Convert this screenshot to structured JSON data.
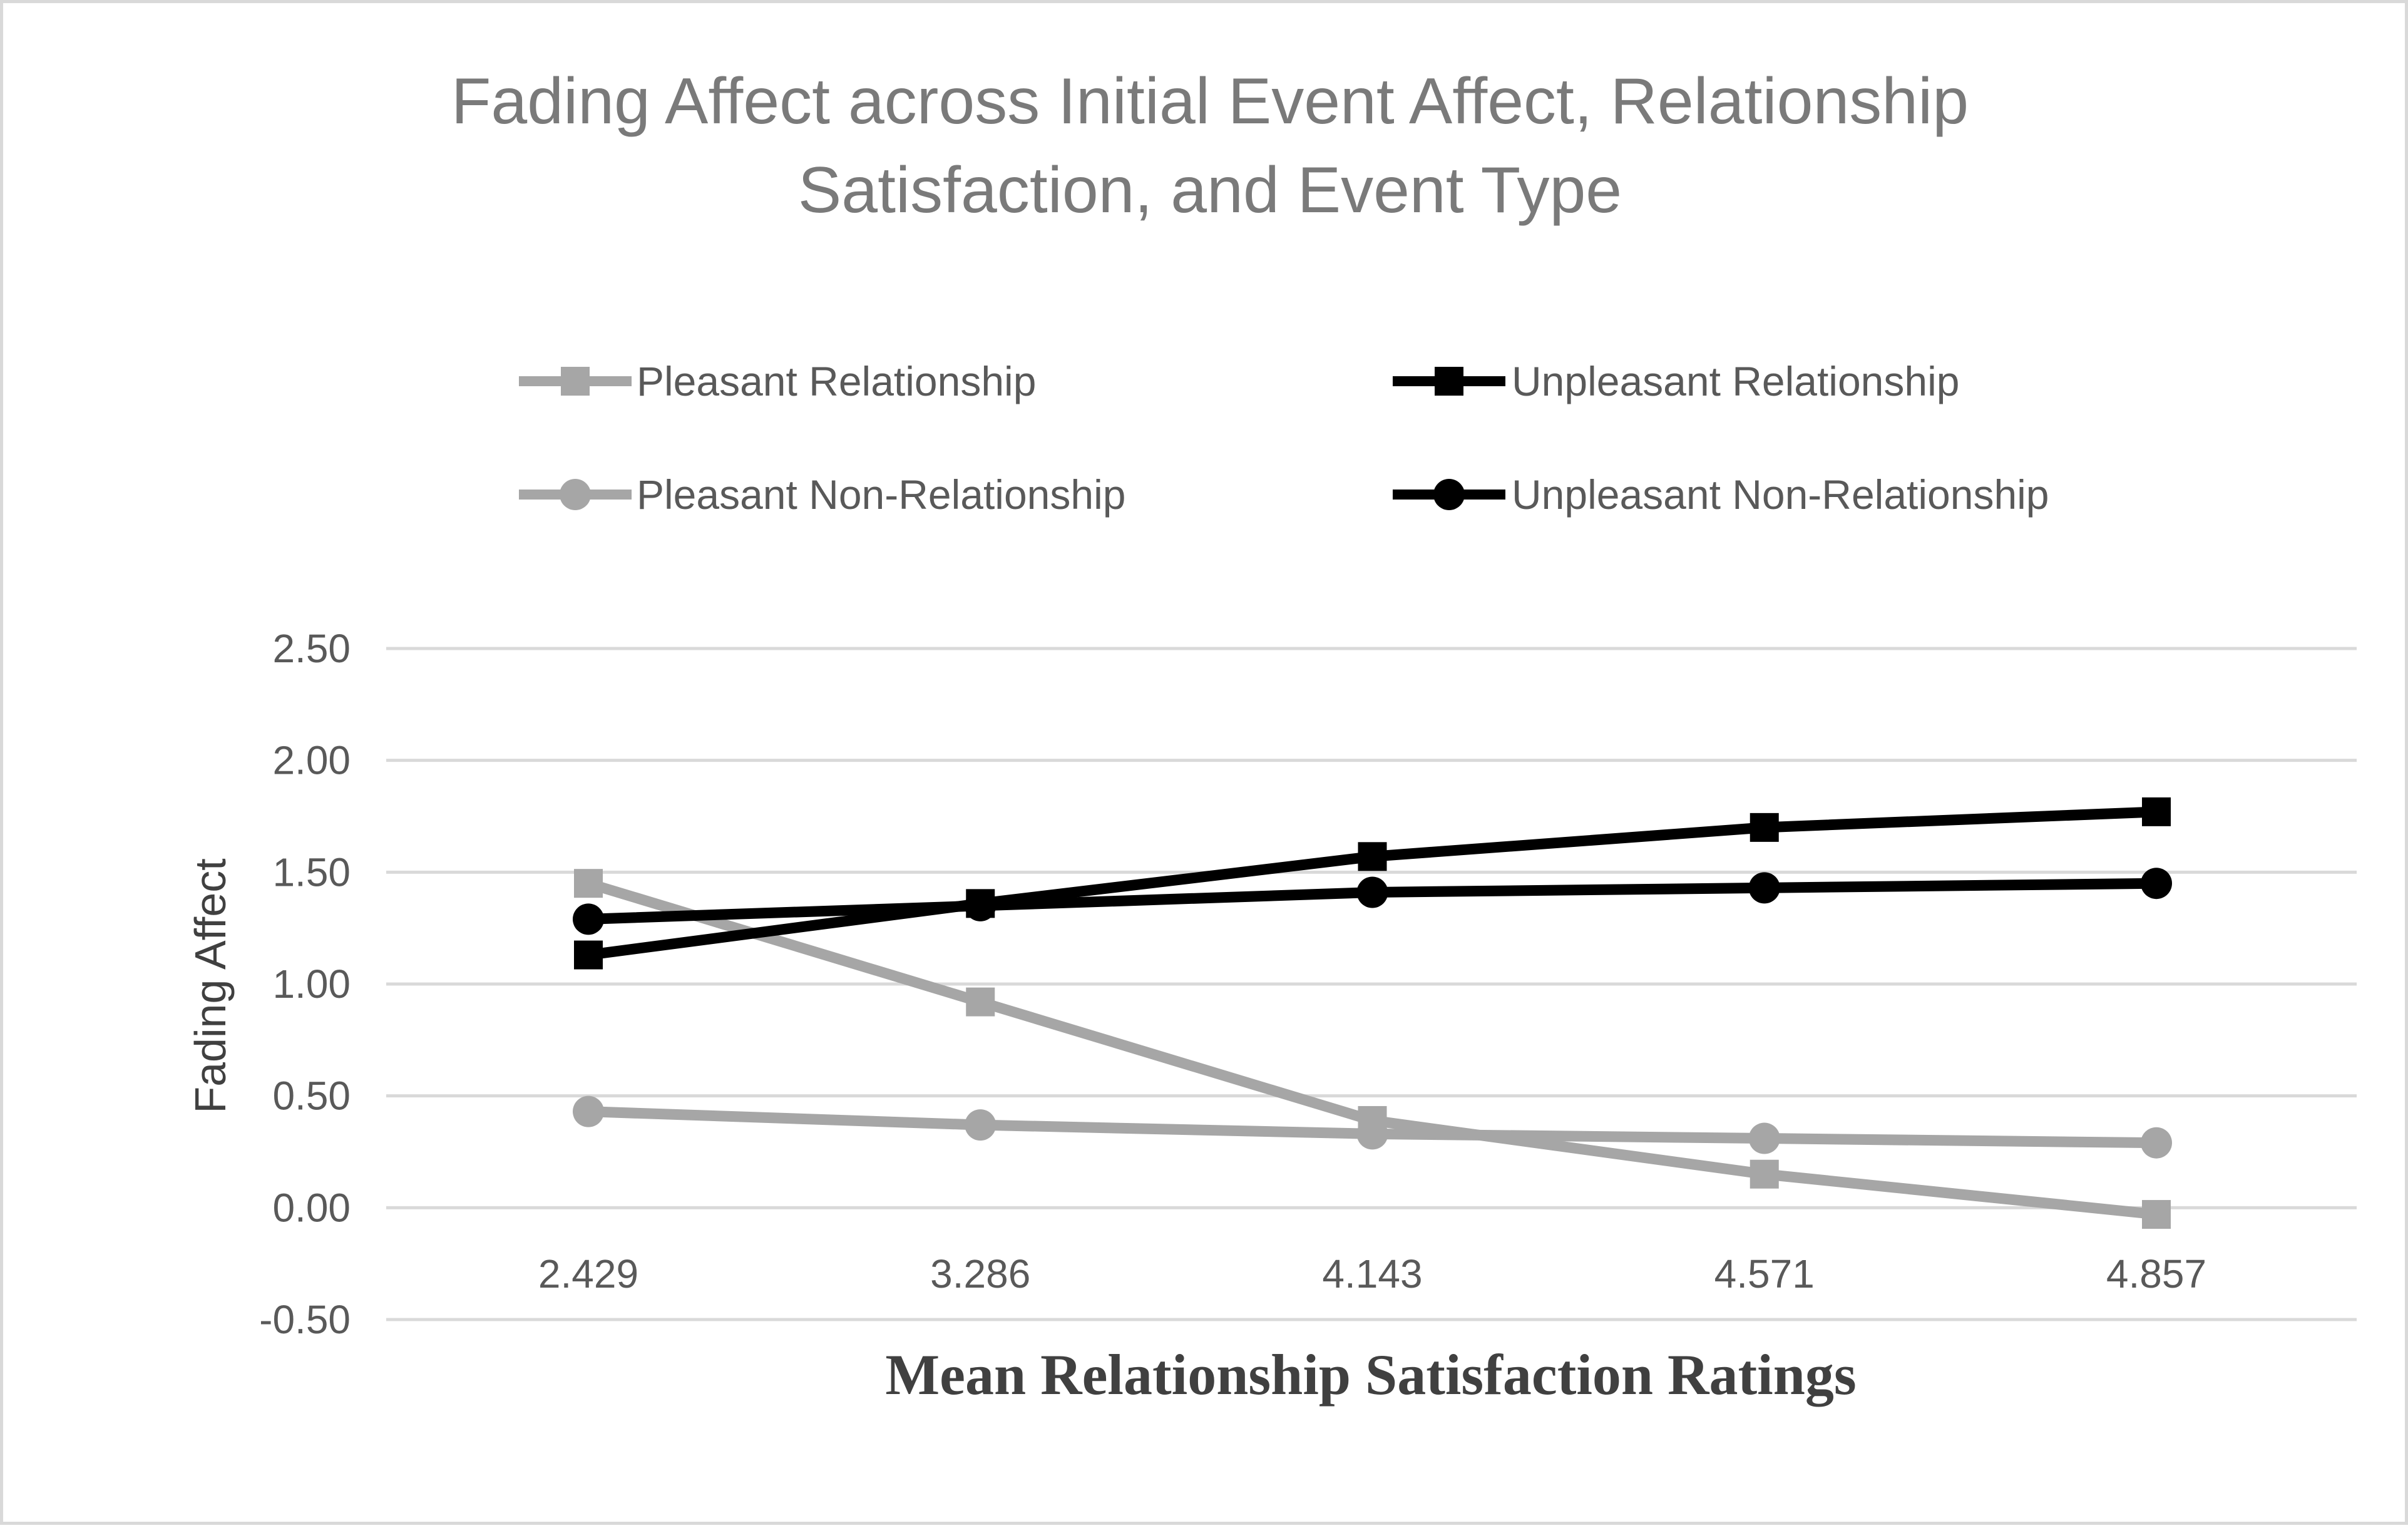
{
  "chart_data": {
    "type": "line",
    "title_lines": [
      "Fading Affect across Initial Event Affect, Relationship",
      "Satisfaction, and Event Type"
    ],
    "xlabel": "Mean Relationship Satisfaction Ratings",
    "ylabel": "Fading Affect",
    "categories": [
      "2.429",
      "3.286",
      "4.143",
      "4.571",
      "4.857"
    ],
    "y_ticks": [
      "2.50",
      "2.00",
      "1.50",
      "1.00",
      "0.50",
      "0.00",
      "-0.50"
    ],
    "ylim": [
      -0.5,
      2.5
    ],
    "grid": true,
    "legend_position": "top",
    "series": [
      {
        "name": "Pleasant Relationship",
        "marker": "square",
        "color": "#a6a6a6",
        "values": [
          1.45,
          0.92,
          0.39,
          0.15,
          -0.03
        ]
      },
      {
        "name": "Unpleasant Relationship",
        "marker": "square",
        "color": "#000000",
        "values": [
          1.13,
          1.36,
          1.57,
          1.7,
          1.77
        ]
      },
      {
        "name": "Pleasant Non-Relationship",
        "marker": "circle",
        "color": "#a6a6a6",
        "values": [
          0.43,
          0.37,
          0.33,
          0.31,
          0.29
        ]
      },
      {
        "name": "Unpleasant Non-Relationship",
        "marker": "circle",
        "color": "#000000",
        "values": [
          1.29,
          1.35,
          1.41,
          1.43,
          1.45
        ]
      }
    ]
  }
}
